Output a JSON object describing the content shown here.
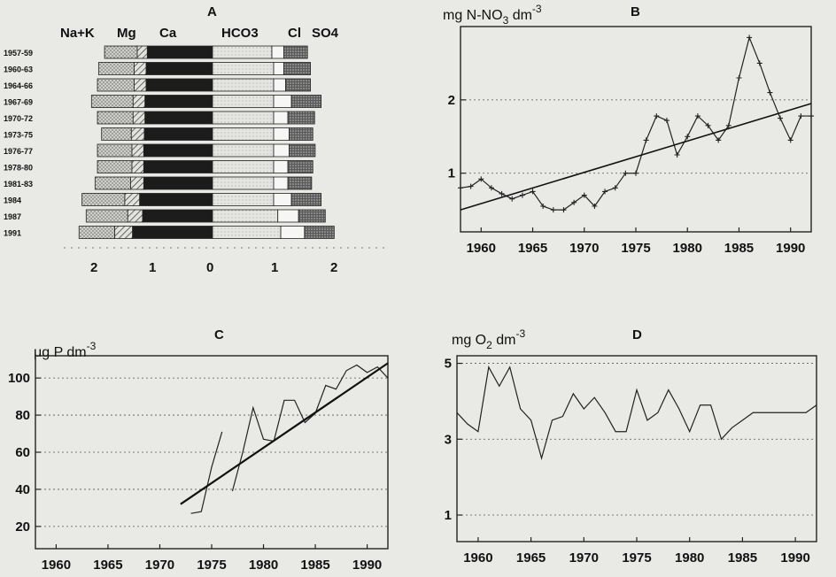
{
  "chart_data": [
    {
      "panel": "A",
      "type": "bar",
      "cation_headers": [
        "Na+K",
        "Mg",
        "Ca"
      ],
      "anion_headers": [
        "HCO3",
        "Cl",
        "SO4"
      ],
      "axis_ticks": [
        "2",
        "1",
        "0",
        "1",
        "2"
      ],
      "xlim": [
        -2,
        2
      ],
      "categories": [
        "1957-59",
        "1960-63",
        "1964-66",
        "1967-69",
        "1970-72",
        "1973-75",
        "1976-77",
        "1978-80",
        "1981-83",
        "1984",
        "1987",
        "1991"
      ],
      "series": [
        {
          "group": "cations",
          "component": "Na+K",
          "values": [
            0.55,
            0.6,
            0.62,
            0.7,
            0.6,
            0.5,
            0.58,
            0.58,
            0.6,
            0.72,
            0.7,
            0.6
          ]
        },
        {
          "group": "cations",
          "component": "Mg",
          "values": [
            0.17,
            0.2,
            0.2,
            0.2,
            0.2,
            0.22,
            0.2,
            0.2,
            0.22,
            0.25,
            0.25,
            0.3
          ]
        },
        {
          "group": "cations",
          "component": "Ca",
          "values": [
            1.1,
            1.12,
            1.12,
            1.14,
            1.14,
            1.15,
            1.16,
            1.16,
            1.16,
            1.23,
            1.18,
            1.35
          ]
        },
        {
          "group": "anions",
          "component": "HCO3",
          "values": [
            1.0,
            1.03,
            1.03,
            1.03,
            1.03,
            1.03,
            1.03,
            1.03,
            1.03,
            1.03,
            1.1,
            1.15
          ]
        },
        {
          "group": "anions",
          "component": "Cl",
          "values": [
            0.2,
            0.17,
            0.2,
            0.3,
            0.24,
            0.26,
            0.26,
            0.24,
            0.24,
            0.3,
            0.35,
            0.4
          ]
        },
        {
          "group": "anions",
          "component": "SO4",
          "values": [
            0.4,
            0.45,
            0.42,
            0.5,
            0.45,
            0.4,
            0.44,
            0.42,
            0.4,
            0.5,
            0.45,
            0.5
          ]
        }
      ]
    },
    {
      "panel": "B",
      "type": "line",
      "ylabel": "mg N-NO3 dm-3",
      "yticks": [
        1,
        2
      ],
      "xticks": [
        1960,
        1965,
        1970,
        1975,
        1980,
        1985,
        1990
      ],
      "xlim": [
        1958,
        1992
      ],
      "ylim": [
        0.2,
        3.0
      ],
      "x": [
        1958,
        1959,
        1960,
        1961,
        1962,
        1963,
        1964,
        1965,
        1966,
        1967,
        1968,
        1969,
        1970,
        1971,
        1972,
        1973,
        1974,
        1975,
        1976,
        1977,
        1978,
        1979,
        1980,
        1981,
        1982,
        1983,
        1984,
        1985,
        1986,
        1987,
        1988,
        1989,
        1990,
        1991,
        1992
      ],
      "y": [
        0.8,
        0.82,
        0.92,
        0.8,
        0.72,
        0.65,
        0.7,
        0.75,
        0.55,
        0.5,
        0.5,
        0.6,
        0.7,
        0.55,
        0.75,
        0.8,
        1.0,
        1.0,
        1.45,
        1.78,
        1.72,
        1.25,
        1.5,
        1.78,
        1.65,
        1.45,
        1.65,
        2.3,
        2.85,
        2.5,
        2.1,
        1.75,
        1.45,
        1.78,
        1.78
      ],
      "trend": {
        "x": [
          1958,
          1992
        ],
        "y": [
          0.5,
          1.95
        ]
      }
    },
    {
      "panel": "C",
      "type": "line",
      "ylabel": "μg P dm-3",
      "yticks": [
        20,
        40,
        60,
        80,
        100
      ],
      "xticks": [
        1960,
        1965,
        1970,
        1975,
        1980,
        1985,
        1990
      ],
      "xlim": [
        1958,
        1992
      ],
      "ylim": [
        8,
        112
      ],
      "segments": [
        {
          "x": [
            1973,
            1974,
            1975,
            1976
          ],
          "y": [
            27,
            28,
            52,
            71
          ]
        },
        {
          "x": [
            1977,
            1978,
            1979,
            1980,
            1981,
            1982,
            1983,
            1984,
            1985,
            1986,
            1987,
            1988,
            1989,
            1990,
            1991,
            1992
          ],
          "y": [
            39,
            60,
            84,
            67,
            66,
            88,
            88,
            76,
            81,
            96,
            94,
            104,
            107,
            103,
            106,
            100
          ]
        }
      ],
      "trend": {
        "x": [
          1972,
          1992
        ],
        "y": [
          32,
          108
        ]
      }
    },
    {
      "panel": "D",
      "type": "line",
      "ylabel": "mg O2 dm-3",
      "yticks": [
        1,
        3,
        5
      ],
      "xticks": [
        1960,
        1965,
        1970,
        1975,
        1980,
        1985,
        1990
      ],
      "xlim": [
        1958,
        1992
      ],
      "ylim": [
        0.3,
        5.2
      ],
      "x": [
        1958,
        1959,
        1960,
        1961,
        1962,
        1963,
        1964,
        1965,
        1966,
        1967,
        1968,
        1969,
        1970,
        1971,
        1972,
        1973,
        1974,
        1975,
        1976,
        1977,
        1978,
        1979,
        1980,
        1981,
        1982,
        1983,
        1984,
        1985,
        1986,
        1987,
        1988,
        1989,
        1990,
        1991,
        1992
      ],
      "y": [
        3.7,
        3.4,
        3.2,
        4.9,
        4.4,
        4.9,
        3.8,
        3.5,
        2.5,
        3.5,
        3.6,
        4.2,
        3.8,
        4.1,
        3.7,
        3.2,
        3.2,
        4.3,
        3.5,
        3.7,
        4.3,
        3.8,
        3.2,
        3.9,
        3.9,
        3.0,
        3.3,
        3.5,
        3.7,
        3.7,
        3.7,
        3.7,
        3.7,
        3.7,
        3.9
      ]
    }
  ]
}
